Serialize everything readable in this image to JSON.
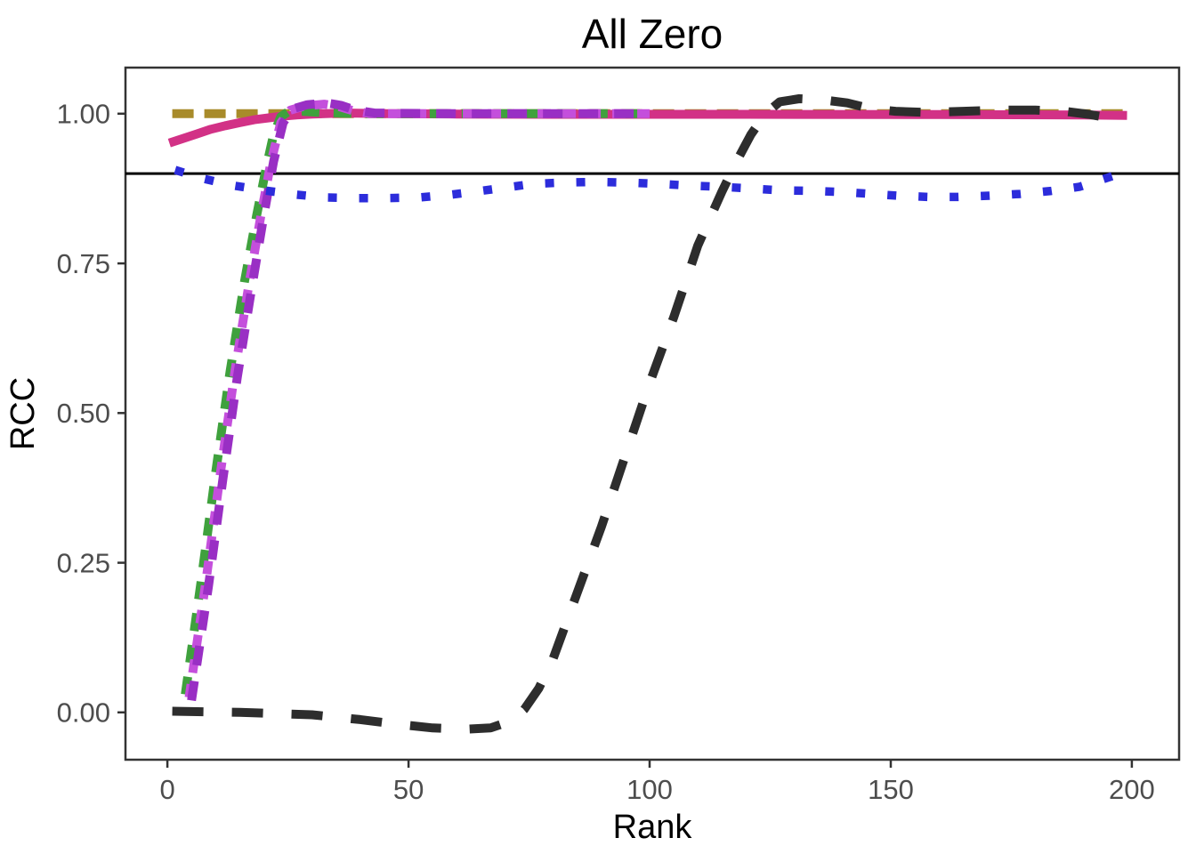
{
  "title": "All Zero",
  "chart_data": {
    "type": "line",
    "title": "All Zero",
    "xlabel": "Rank",
    "ylabel": "RCC",
    "grid": "off",
    "legend": "none",
    "xlim": [
      -8.7,
      209.8
    ],
    "ylim": [
      -0.079,
      1.077
    ],
    "x_ticks": [
      0,
      50,
      100,
      150,
      200
    ],
    "x_tick_labels": [
      "0",
      "50",
      "100",
      "150",
      "200"
    ],
    "y_ticks": [
      0.0,
      0.25,
      0.5,
      0.75,
      1.0
    ],
    "y_tick_labels": [
      "0.00",
      "0.25",
      "0.50",
      "0.75",
      "1.00"
    ],
    "reference_line": {
      "y": 0.9,
      "color": "#000000",
      "width": 3
    },
    "panel_border_color": "#333333",
    "tick_color": "#333333",
    "tick_label_color": "#4d4d4d",
    "series": [
      {
        "name": "dark-yellow-longdash",
        "color": "#a88b2a",
        "dash": [
          24,
          12
        ],
        "width": 10,
        "x": [
          1,
          199.5
        ],
        "y": [
          1.0,
          1.0
        ]
      },
      {
        "name": "pink-solid",
        "color": "#d23186",
        "dash": null,
        "width": 10,
        "x": [
          0.4,
          3,
          6,
          9,
          12,
          15,
          18,
          21,
          24,
          27,
          30,
          34,
          38,
          45,
          60,
          80,
          120,
          160,
          190,
          199
        ],
        "y": [
          0.951,
          0.958,
          0.966,
          0.974,
          0.98,
          0.985,
          0.99,
          0.993,
          0.996,
          0.998,
          0.9995,
          1.0005,
          1.001,
          1.0,
          0.9995,
          0.999,
          0.999,
          0.9985,
          0.998,
          0.997
        ]
      },
      {
        "name": "green-dashed",
        "color": "#3fa13d",
        "dash": [
          20,
          16
        ],
        "width": 10,
        "x": [
          3.7,
          7,
          10,
          13,
          16,
          18.5,
          20.5,
          22,
          23.5,
          25,
          28,
          32,
          40,
          60,
          100
        ],
        "y": [
          0.03,
          0.22,
          0.4,
          0.57,
          0.72,
          0.83,
          0.91,
          0.965,
          0.995,
          1.003,
          1.004,
          1.002,
          1.0,
          1.0,
          1.0
        ]
      },
      {
        "name": "orchid-dotdash",
        "color": "#c44fdc",
        "dash": [
          15,
          13
        ],
        "width": 10,
        "x": [
          4.5,
          8,
          11,
          14,
          17,
          19.5,
          21.5,
          23.5,
          25.5,
          28.5,
          32.5,
          35.5,
          38.5,
          42,
          60,
          100
        ],
        "y": [
          0.025,
          0.22,
          0.4,
          0.57,
          0.72,
          0.835,
          0.92,
          0.985,
          1.006,
          1.013,
          1.016,
          1.012,
          1.005,
          1.0,
          1.0,
          1.0
        ]
      },
      {
        "name": "purple-dashed",
        "color": "#992fc4",
        "dash": [
          22,
          18
        ],
        "width": 10,
        "x": [
          5,
          8.5,
          11.5,
          14.5,
          17.5,
          20,
          22,
          24,
          26,
          29,
          33,
          36,
          39,
          43,
          60,
          100
        ],
        "y": [
          0.02,
          0.21,
          0.39,
          0.56,
          0.71,
          0.83,
          0.92,
          0.985,
          1.008,
          1.015,
          1.018,
          1.014,
          1.006,
          1.001,
          1.0,
          1.0
        ]
      },
      {
        "name": "blue-dotted",
        "color": "#2c2cdb",
        "dash": [
          10,
          25
        ],
        "width": 9.5,
        "x": [
          1.6,
          7.7,
          13.7,
          20,
          26.6,
          32.8,
          39,
          45.5,
          52.2,
          59,
          65,
          69.5,
          75.9,
          82.3,
          88.8,
          95.2,
          101.7,
          108.1,
          114.5,
          121,
          127.4,
          133.9,
          140.3,
          146,
          151.5,
          157.9,
          164,
          170.4,
          176.9,
          183.3,
          189.2,
          196.5
        ],
        "y": [
          0.906,
          0.891,
          0.88,
          0.872,
          0.865,
          0.86,
          0.859,
          0.859,
          0.86,
          0.865,
          0.871,
          0.876,
          0.883,
          0.885,
          0.886,
          0.885,
          0.883,
          0.88,
          0.878,
          0.875,
          0.872,
          0.871,
          0.869,
          0.866,
          0.863,
          0.861,
          0.861,
          0.863,
          0.866,
          0.871,
          0.878,
          0.897
        ]
      },
      {
        "name": "black-dashed",
        "color": "#2d2d2d",
        "dash": [
          35,
          32
        ],
        "width": 10,
        "x": [
          1,
          15,
          30,
          40,
          48,
          55,
          62,
          67,
          71,
          74,
          77,
          80,
          85,
          90,
          95,
          100,
          105,
          110,
          115,
          118,
          121,
          124,
          127,
          131,
          136,
          141,
          146,
          151,
          158,
          165,
          172,
          180,
          186,
          191,
          196
        ],
        "y": [
          0.002,
          0.0,
          -0.004,
          -0.012,
          -0.02,
          -0.026,
          -0.028,
          -0.026,
          -0.015,
          0.005,
          0.04,
          0.09,
          0.2,
          0.31,
          0.43,
          0.55,
          0.66,
          0.78,
          0.87,
          0.92,
          0.965,
          1.0,
          1.02,
          1.025,
          1.023,
          1.018,
          1.008,
          1.004,
          1.002,
          1.004,
          1.006,
          1.006,
          1.004,
          0.999,
          0.992
        ]
      }
    ]
  }
}
